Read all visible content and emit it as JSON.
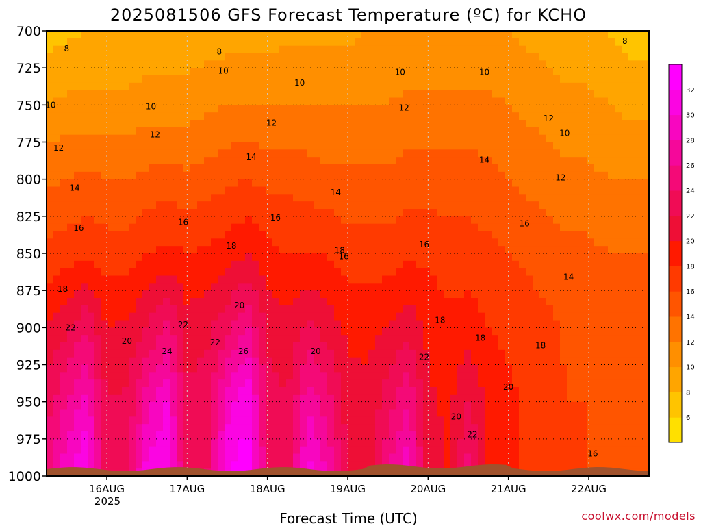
{
  "chart_data": {
    "type": "heatmap",
    "title": "2025081506 GFS Forecast Temperature (ºC) for KCHO",
    "xlabel": "Forecast Time (UTC)",
    "ylabel": "",
    "credit": "coolwx.com/models",
    "x_tick_labels": [
      "16AUG",
      "17AUG",
      "18AUG",
      "19AUG",
      "20AUG",
      "21AUG",
      "22AUG"
    ],
    "x_year_label": "2025",
    "y_ticks": [
      700,
      725,
      750,
      775,
      800,
      825,
      850,
      875,
      900,
      925,
      950,
      975,
      1000
    ],
    "ylim": [
      1000,
      700
    ],
    "xlim_days": [
      15.25,
      22.75
    ],
    "grid": true,
    "colorbar_ticks": [
      6,
      8,
      10,
      12,
      14,
      16,
      18,
      20,
      22,
      24,
      26,
      28,
      30,
      32
    ],
    "color_levels": [
      {
        "min": 4,
        "color": "#ffe000"
      },
      {
        "min": 6,
        "color": "#ffc400"
      },
      {
        "min": 8,
        "color": "#ffa500"
      },
      {
        "min": 10,
        "color": "#ff8f00"
      },
      {
        "min": 12,
        "color": "#ff7300"
      },
      {
        "min": 14,
        "color": "#ff5500"
      },
      {
        "min": 16,
        "color": "#ff3a00"
      },
      {
        "min": 18,
        "color": "#ff1a00"
      },
      {
        "min": 20,
        "color": "#ee0f36"
      },
      {
        "min": 22,
        "color": "#f00c55"
      },
      {
        "min": 24,
        "color": "#f40a77"
      },
      {
        "min": 26,
        "color": "#f5089a"
      },
      {
        "min": 28,
        "color": "#f806c0"
      },
      {
        "min": 30,
        "color": "#fb05e2"
      },
      {
        "min": 32,
        "color": "#ff00ff"
      }
    ],
    "terrain_color": "#a0522d",
    "vertical_profiles": [
      {
        "day": 15.25,
        "temps": {
          "700": 7,
          "750": 10,
          "800": 13.5,
          "850": 16.5,
          "900": 20,
          "950": 23,
          "1000": 25
        }
      },
      {
        "day": 15.5,
        "temps": {
          "700": 7.5,
          "750": 10.5,
          "800": 14,
          "850": 17,
          "900": 21.5,
          "950": 26,
          "1000": 30
        }
      },
      {
        "day": 15.75,
        "temps": {
          "700": 8,
          "750": 10.5,
          "800": 14.5,
          "850": 17.5,
          "900": 24,
          "950": 29,
          "1000": 32
        }
      },
      {
        "day": 16.0,
        "temps": {
          "700": 8,
          "750": 10.5,
          "800": 14,
          "850": 17,
          "900": 20,
          "950": 22,
          "1000": 23
        }
      },
      {
        "day": 16.25,
        "temps": {
          "700": 8,
          "750": 10.5,
          "800": 14,
          "850": 17,
          "900": 20.5,
          "950": 22.5,
          "1000": 24
        }
      },
      {
        "day": 16.5,
        "temps": {
          "700": 8.5,
          "750": 11,
          "800": 14.5,
          "850": 18,
          "900": 22,
          "950": 27,
          "1000": 31
        }
      },
      {
        "day": 16.75,
        "temps": {
          "700": 8.5,
          "750": 11,
          "800": 15,
          "850": 18.5,
          "900": 24.5,
          "950": 30,
          "1000": 32
        }
      },
      {
        "day": 17.0,
        "temps": {
          "700": 8.5,
          "750": 11,
          "800": 14.5,
          "850": 18,
          "900": 21,
          "950": 22.5,
          "1000": 23
        }
      },
      {
        "day": 17.25,
        "temps": {
          "700": 9,
          "750": 11.5,
          "800": 15,
          "850": 18.5,
          "900": 21.5,
          "950": 23,
          "1000": 24
        }
      },
      {
        "day": 17.5,
        "temps": {
          "700": 9,
          "750": 12,
          "800": 15.5,
          "850": 19,
          "900": 23.5,
          "950": 29,
          "1000": 32
        }
      },
      {
        "day": 17.75,
        "temps": {
          "700": 9,
          "750": 12,
          "800": 16,
          "850": 20,
          "900": 26,
          "950": 32,
          "1000": 33
        }
      },
      {
        "day": 18.0,
        "temps": {
          "700": 9,
          "750": 12,
          "800": 15.5,
          "850": 18.5,
          "900": 21.5,
          "950": 23,
          "1000": 24
        }
      },
      {
        "day": 18.25,
        "temps": {
          "700": 9.5,
          "750": 12,
          "800": 15.5,
          "850": 18,
          "900": 20.5,
          "950": 22,
          "1000": 23
        }
      },
      {
        "day": 18.5,
        "temps": {
          "700": 9.5,
          "750": 12,
          "800": 15,
          "850": 18,
          "900": 22.5,
          "950": 27.5,
          "1000": 31
        }
      },
      {
        "day": 18.75,
        "temps": {
          "700": 9.5,
          "750": 12,
          "800": 14.5,
          "850": 18,
          "900": 21,
          "950": 25,
          "1000": 28
        }
      },
      {
        "day": 19.0,
        "temps": {
          "700": 9.5,
          "750": 12,
          "800": 14.5,
          "850": 17,
          "900": 19.5,
          "950": 21,
          "1000": 21.5
        }
      },
      {
        "day": 19.25,
        "temps": {
          "700": 10,
          "750": 12,
          "800": 14.5,
          "850": 17,
          "900": 19.5,
          "950": 20.5,
          "1000": 21
        }
      },
      {
        "day": 19.5,
        "temps": {
          "700": 10,
          "750": 12,
          "800": 14.5,
          "850": 17,
          "900": 20,
          "950": 23,
          "1000": 26
        }
      },
      {
        "day": 19.75,
        "temps": {
          "700": 10,
          "750": 12.5,
          "800": 15,
          "850": 17.5,
          "900": 21.5,
          "950": 26,
          "1000": 30
        }
      },
      {
        "day": 20.0,
        "temps": {
          "700": 10,
          "750": 12.5,
          "800": 15,
          "850": 17.5,
          "900": 19.5,
          "950": 20.5,
          "1000": 21
        }
      },
      {
        "day": 20.25,
        "temps": {
          "700": 10,
          "750": 12.5,
          "800": 15,
          "850": 17,
          "900": 18.5,
          "950": 19.5,
          "1000": 20
        }
      },
      {
        "day": 20.5,
        "temps": {
          "700": 10,
          "750": 12.5,
          "800": 15,
          "850": 17,
          "900": 19,
          "950": 22,
          "1000": 25
        }
      },
      {
        "day": 20.75,
        "temps": {
          "700": 10,
          "750": 12.5,
          "800": 14.5,
          "850": 16.5,
          "900": 18,
          "950": 19.5,
          "1000": 20
        }
      },
      {
        "day": 21.0,
        "temps": {
          "700": 10,
          "750": 12,
          "800": 14,
          "850": 16,
          "900": 17.5,
          "950": 18.5,
          "1000": 19
        }
      },
      {
        "day": 21.25,
        "temps": {
          "700": 9.5,
          "750": 11.5,
          "800": 13.5,
          "850": 15.5,
          "900": 17,
          "950": 17.5,
          "1000": 17.5
        }
      },
      {
        "day": 21.5,
        "temps": {
          "700": 9,
          "750": 11,
          "800": 13,
          "850": 15,
          "900": 16.5,
          "950": 17,
          "1000": 17.5
        }
      },
      {
        "day": 21.75,
        "temps": {
          "700": 8.5,
          "750": 10.5,
          "800": 12.5,
          "850": 14.5,
          "900": 15.5,
          "950": 16,
          "1000": 16
        }
      },
      {
        "day": 22.0,
        "temps": {
          "700": 8.5,
          "750": 10.5,
          "800": 12.5,
          "850": 14.5,
          "900": 15.5,
          "950": 16,
          "1000": 16
        }
      },
      {
        "day": 22.25,
        "temps": {
          "700": 8,
          "750": 10,
          "800": 12,
          "850": 14,
          "900": 15,
          "950": 15.5,
          "1000": 16
        }
      },
      {
        "day": 22.5,
        "temps": {
          "700": 7,
          "750": 9.5,
          "800": 12,
          "850": 14,
          "900": 15,
          "950": 15.5,
          "1000": 16
        }
      },
      {
        "day": 22.75,
        "temps": {
          "700": 7,
          "750": 9.5,
          "800": 12,
          "850": 14,
          "900": 15,
          "950": 15.5,
          "1000": 16
        }
      }
    ],
    "contour_labels": [
      {
        "text": "8",
        "day": 15.5,
        "p": 712
      },
      {
        "text": "8",
        "day": 17.4,
        "p": 714
      },
      {
        "text": "8",
        "day": 22.45,
        "p": 707
      },
      {
        "text": "10",
        "day": 15.3,
        "p": 750
      },
      {
        "text": "10",
        "day": 16.55,
        "p": 751
      },
      {
        "text": "10",
        "day": 17.45,
        "p": 727
      },
      {
        "text": "10",
        "day": 18.4,
        "p": 735
      },
      {
        "text": "10",
        "day": 19.65,
        "p": 728
      },
      {
        "text": "10",
        "day": 20.7,
        "p": 728
      },
      {
        "text": "10",
        "day": 21.7,
        "p": 769
      },
      {
        "text": "12",
        "day": 15.4,
        "p": 779
      },
      {
        "text": "12",
        "day": 16.6,
        "p": 770
      },
      {
        "text": "12",
        "day": 18.05,
        "p": 762
      },
      {
        "text": "12",
        "day": 19.7,
        "p": 752
      },
      {
        "text": "12",
        "day": 21.5,
        "p": 759
      },
      {
        "text": "12",
        "day": 21.65,
        "p": 799
      },
      {
        "text": "14",
        "day": 15.6,
        "p": 806
      },
      {
        "text": "14",
        "day": 17.8,
        "p": 785
      },
      {
        "text": "14",
        "day": 18.85,
        "p": 809
      },
      {
        "text": "14",
        "day": 20.7,
        "p": 787
      },
      {
        "text": "14",
        "day": 21.75,
        "p": 866
      },
      {
        "text": "16",
        "day": 15.65,
        "p": 833
      },
      {
        "text": "16",
        "day": 16.95,
        "p": 829
      },
      {
        "text": "16",
        "day": 18.1,
        "p": 826
      },
      {
        "text": "16",
        "day": 18.95,
        "p": 852
      },
      {
        "text": "16",
        "day": 19.95,
        "p": 844
      },
      {
        "text": "16",
        "day": 21.2,
        "p": 830
      },
      {
        "text": "16",
        "day": 22.05,
        "p": 985
      },
      {
        "text": "18",
        "day": 15.45,
        "p": 874
      },
      {
        "text": "18",
        "day": 17.55,
        "p": 845
      },
      {
        "text": "18",
        "day": 18.9,
        "p": 848
      },
      {
        "text": "18",
        "day": 20.15,
        "p": 895
      },
      {
        "text": "18",
        "day": 20.65,
        "p": 907
      },
      {
        "text": "18",
        "day": 21.4,
        "p": 912
      },
      {
        "text": "20",
        "day": 16.25,
        "p": 909
      },
      {
        "text": "20",
        "day": 17.65,
        "p": 885
      },
      {
        "text": "20",
        "day": 18.6,
        "p": 916
      },
      {
        "text": "20",
        "day": 20.35,
        "p": 960
      },
      {
        "text": "20",
        "day": 21.0,
        "p": 940
      },
      {
        "text": "22",
        "day": 15.55,
        "p": 900
      },
      {
        "text": "22",
        "day": 16.95,
        "p": 898
      },
      {
        "text": "22",
        "day": 17.35,
        "p": 910
      },
      {
        "text": "22",
        "day": 19.95,
        "p": 920
      },
      {
        "text": "22",
        "day": 20.55,
        "p": 972
      },
      {
        "text": "24",
        "day": 16.75,
        "p": 916
      },
      {
        "text": "26",
        "day": 17.7,
        "p": 916
      }
    ]
  }
}
